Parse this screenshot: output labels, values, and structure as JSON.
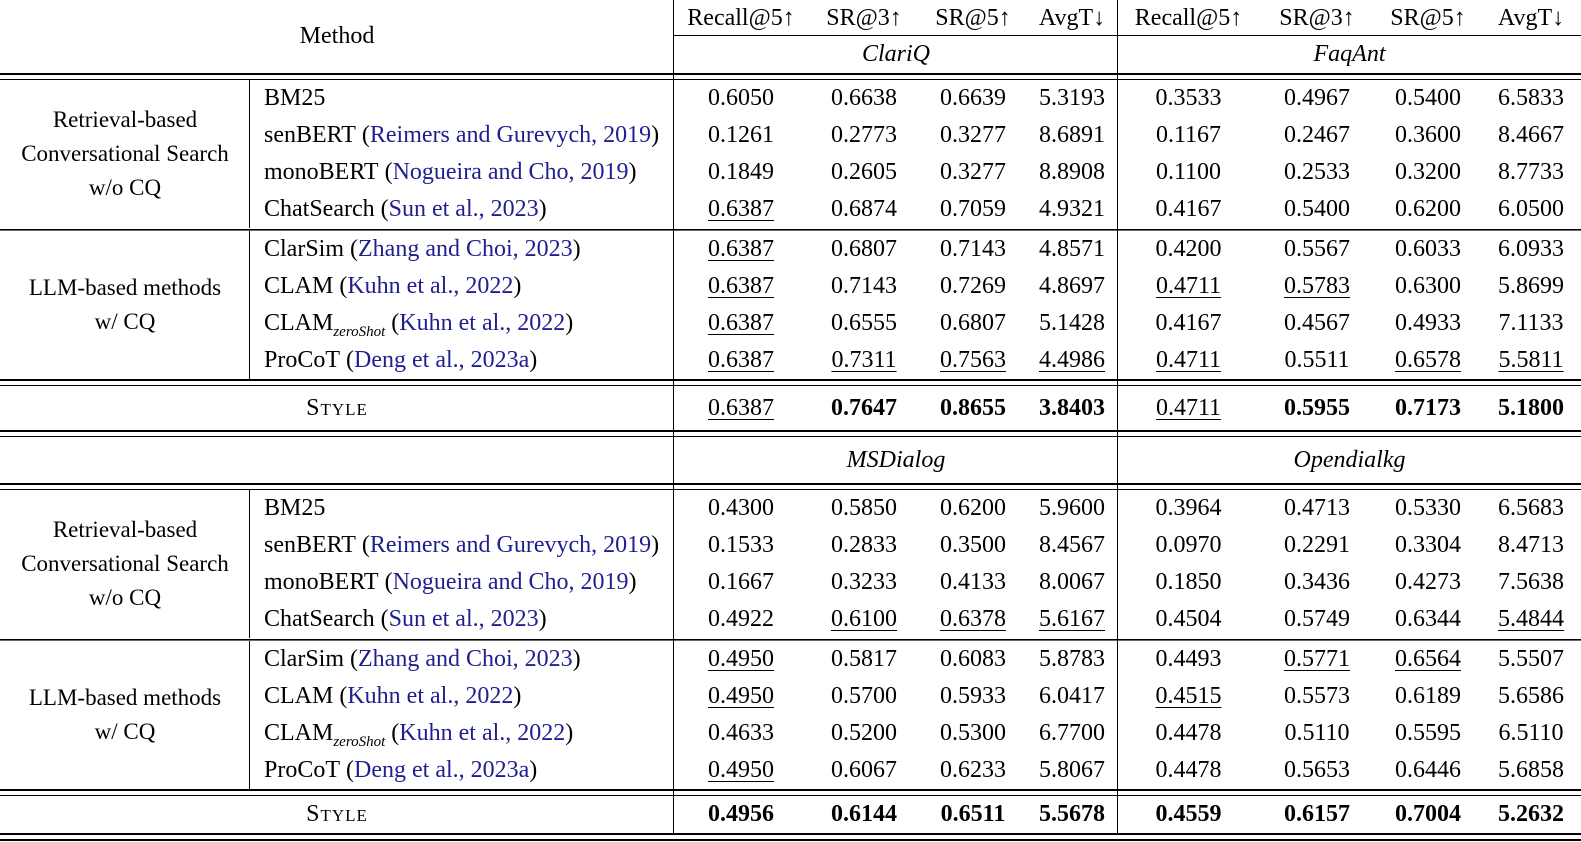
{
  "colors": {
    "citation_link": "#1F1F8F",
    "text": "#000000"
  },
  "header": {
    "method_label": "Method",
    "metrics": [
      "Recall@5↑",
      "SR@3↑",
      "SR@5↑",
      "AvgT↓"
    ],
    "datasets_top": [
      "ClariQ",
      "FaqAnt"
    ],
    "datasets_bottom": [
      "MSDialog",
      "Opendialkg"
    ]
  },
  "groups_top": [
    {
      "label_lines": [
        "Retrieval-based",
        "Conversational Search",
        "w/o CQ"
      ],
      "rows": [
        {
          "name": "BM25",
          "sub": "",
          "cite": "",
          "vals": [
            "0.6050",
            "0.6638",
            "0.6639",
            "5.3193",
            "0.3533",
            "0.4967",
            "0.5400",
            "6.5833"
          ]
        },
        {
          "name": "senBERT",
          "sub": "",
          "cite": "Reimers and Gurevych, 2019",
          "vals": [
            "0.1261",
            "0.2773",
            "0.3277",
            "8.6891",
            "0.1167",
            "0.2467",
            "0.3600",
            "8.4667"
          ]
        },
        {
          "name": "monoBERT",
          "sub": "",
          "cite": "Nogueira and Cho, 2019",
          "vals": [
            "0.1849",
            "0.2605",
            "0.3277",
            "8.8908",
            "0.1100",
            "0.2533",
            "0.3200",
            "8.7733"
          ]
        },
        {
          "name": "ChatSearch",
          "sub": "",
          "cite": "Sun et al., 2023",
          "vals": [
            "0.6387",
            "0.6874",
            "0.7059",
            "4.9321",
            "0.4167",
            "0.5400",
            "0.6200",
            "6.0500"
          ]
        }
      ]
    },
    {
      "label_lines": [
        "LLM-based methods",
        "w/ CQ"
      ],
      "rows": [
        {
          "name": "ClarSim",
          "sub": "",
          "cite": "Zhang and Choi, 2023",
          "vals": [
            "0.6387",
            "0.6807",
            "0.7143",
            "4.8571",
            "0.4200",
            "0.5567",
            "0.6033",
            "6.0933"
          ]
        },
        {
          "name": "CLAM",
          "sub": "",
          "cite": "Kuhn et al., 2022",
          "vals": [
            "0.6387",
            "0.7143",
            "0.7269",
            "4.8697",
            "0.4711",
            "0.5783",
            "0.6300",
            "5.8699"
          ]
        },
        {
          "name": "CLAM",
          "sub": "zeroShot",
          "cite": "Kuhn et al., 2022",
          "vals": [
            "0.6387",
            "0.6555",
            "0.6807",
            "5.1428",
            "0.4167",
            "0.4567",
            "0.4933",
            "7.1133"
          ]
        },
        {
          "name": "ProCoT",
          "sub": "",
          "cite": "Deng et al., 2023a",
          "vals": [
            "0.6387",
            "0.7311",
            "0.7563",
            "4.4986",
            "0.4711",
            "0.5511",
            "0.6578",
            "5.5811"
          ]
        }
      ]
    }
  ],
  "style_top": {
    "label": "Style",
    "vals": [
      "0.6387",
      "0.7647",
      "0.8655",
      "3.8403",
      "0.4711",
      "0.5955",
      "0.7173",
      "5.1800"
    ]
  },
  "groups_bottom": [
    {
      "label_lines": [
        "Retrieval-based",
        "Conversational Search",
        "w/o CQ"
      ],
      "rows": [
        {
          "name": "BM25",
          "sub": "",
          "cite": "",
          "vals": [
            "0.4300",
            "0.5850",
            "0.6200",
            "5.9600",
            "0.3964",
            "0.4713",
            "0.5330",
            "6.5683"
          ]
        },
        {
          "name": "senBERT",
          "sub": "",
          "cite": "Reimers and Gurevych, 2019",
          "vals": [
            "0.1533",
            "0.2833",
            "0.3500",
            "8.4567",
            "0.0970",
            "0.2291",
            "0.3304",
            "8.4713"
          ]
        },
        {
          "name": "monoBERT",
          "sub": "",
          "cite": "Nogueira and Cho, 2019",
          "vals": [
            "0.1667",
            "0.3233",
            "0.4133",
            "8.0067",
            "0.1850",
            "0.3436",
            "0.4273",
            "7.5638"
          ]
        },
        {
          "name": "ChatSearch",
          "sub": "",
          "cite": "Sun et al., 2023",
          "vals": [
            "0.4922",
            "0.6100",
            "0.6378",
            "5.6167",
            "0.4504",
            "0.5749",
            "0.6344",
            "5.4844"
          ]
        }
      ]
    },
    {
      "label_lines": [
        "LLM-based methods",
        "w/ CQ"
      ],
      "rows": [
        {
          "name": "ClarSim",
          "sub": "",
          "cite": "Zhang and Choi, 2023",
          "vals": [
            "0.4950",
            "0.5817",
            "0.6083",
            "5.8783",
            "0.4493",
            "0.5771",
            "0.6564",
            "5.5507"
          ]
        },
        {
          "name": "CLAM",
          "sub": "",
          "cite": "Kuhn et al., 2022",
          "vals": [
            "0.4950",
            "0.5700",
            "0.5933",
            "6.0417",
            "0.4515",
            "0.5573",
            "0.6189",
            "5.6586"
          ]
        },
        {
          "name": "CLAM",
          "sub": "zeroShot",
          "cite": "Kuhn et al., 2022",
          "vals": [
            "0.4633",
            "0.5200",
            "0.5300",
            "6.7700",
            "0.4478",
            "0.5110",
            "0.5595",
            "6.5110"
          ]
        },
        {
          "name": "ProCoT",
          "sub": "",
          "cite": "Deng et al., 2023a",
          "vals": [
            "0.4950",
            "0.6067",
            "0.6233",
            "5.8067",
            "0.4478",
            "0.5653",
            "0.6446",
            "5.6858"
          ]
        }
      ]
    }
  ],
  "style_bottom": {
    "label": "Style",
    "vals": [
      "0.4956",
      "0.6144",
      "0.6511",
      "5.5678",
      "0.4559",
      "0.6157",
      "0.7004",
      "5.2632"
    ]
  }
}
